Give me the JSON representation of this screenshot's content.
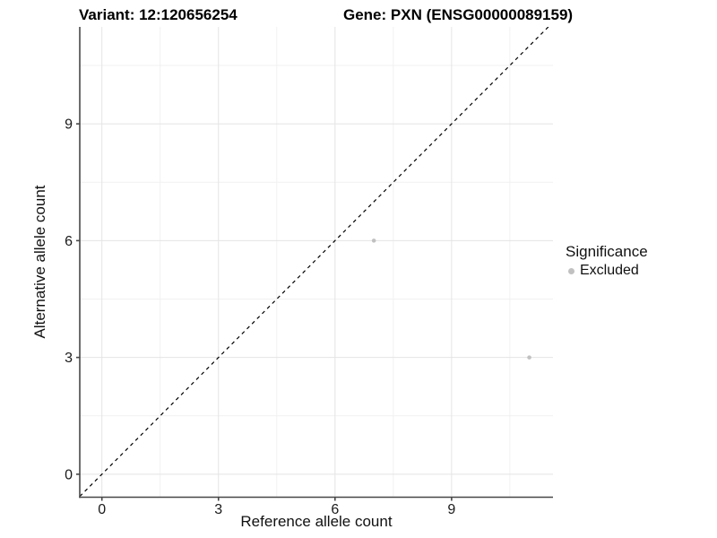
{
  "chart_data": {
    "type": "scatter",
    "titles": [
      "Variant: 12:120656254",
      "Gene: PXN (ENSG00000089159)"
    ],
    "xlabel": "Reference allele count",
    "ylabel": "Alternative allele count",
    "xlim": [
      -0.57,
      11.61
    ],
    "ylim": [
      -0.59,
      11.49
    ],
    "x_ticks": [
      0,
      3,
      6,
      9
    ],
    "y_ticks": [
      0,
      3,
      6,
      9
    ],
    "x_minor_ticks": [
      1.5,
      4.5,
      7.5,
      10.5
    ],
    "y_minor_ticks": [
      1.5,
      4.5,
      7.5,
      10.5
    ],
    "grid": "major+minor",
    "series": [
      {
        "name": "Excluded",
        "color": "#c1c1c1",
        "points": [
          {
            "x": 7,
            "y": 6
          },
          {
            "x": 11,
            "y": 3
          }
        ]
      }
    ],
    "identity_line": {
      "slope": 1,
      "intercept": 0,
      "style": "dashed",
      "color": "#000000"
    },
    "legend": {
      "title": "Significance",
      "position": "right",
      "items": [
        {
          "label": "Excluded",
          "color": "#c1c1c1"
        }
      ]
    }
  },
  "colors": {
    "background": "#ffffff",
    "grid_major": "#e4e4e4",
    "grid_minor": "#f1f1f1",
    "axis_line": "#474747",
    "tick_text": "#1a1a1a"
  }
}
